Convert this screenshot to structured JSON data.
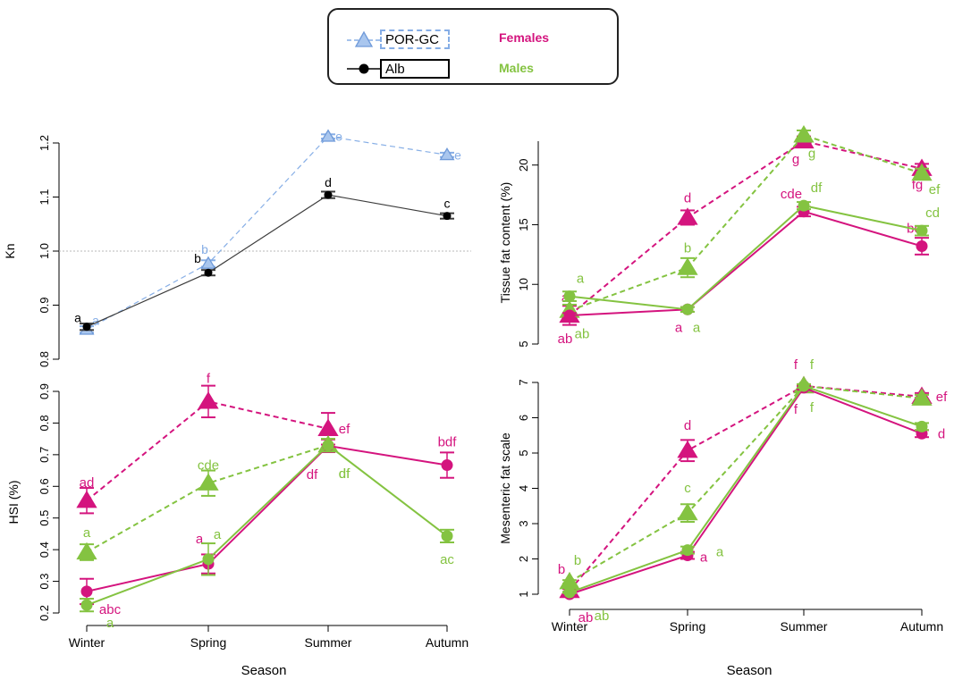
{
  "legend": {
    "groups": [
      {
        "label": "POR-GC",
        "color": "#86aee6",
        "line": "dashed",
        "marker": "triangle"
      },
      {
        "label": "Alb",
        "color": "#000000",
        "line": "solid",
        "marker": "circle"
      }
    ],
    "sexes": [
      {
        "label": "Females",
        "color": "#d4147e"
      },
      {
        "label": "Males",
        "color": "#84c341"
      }
    ]
  },
  "xlabel_left": "Season",
  "xlabel_right": "Season",
  "chart_data": [
    {
      "id": "kn",
      "type": "line",
      "xlabel": "",
      "ylabel": "Kn",
      "categories": [
        "Winter",
        "Spring",
        "Summer",
        "Autumn"
      ],
      "ylim": [
        0.8,
        1.2
      ],
      "yticks": [
        "0.8",
        "0.9",
        "1.0",
        "1.1",
        "1.2"
      ],
      "reference_line": 1.0,
      "series": [
        {
          "name": "POR-GC",
          "color": "#86aee6",
          "dash": true,
          "marker": "triangle",
          "values": [
            0.855,
            0.977,
            1.212,
            1.178
          ],
          "err": [
            0.006,
            0.006,
            0.004,
            0.004
          ],
          "letters": [
            "a",
            "b",
            "e",
            "e"
          ]
        },
        {
          "name": "Alb",
          "color": "#3c3c3c",
          "dash": false,
          "marker": "circle",
          "values": [
            0.86,
            0.96,
            1.104,
            1.065
          ],
          "err": [
            0.006,
            0.005,
            0.006,
            0.005
          ],
          "letters": [
            "a",
            "b",
            "d",
            "c"
          ]
        }
      ]
    },
    {
      "id": "fat",
      "type": "line",
      "xlabel": "",
      "ylabel": "Tissue fat content (%)",
      "categories": [
        "Winter",
        "Spring",
        "Summer",
        "Autumn"
      ],
      "ylim": [
        5,
        22
      ],
      "yticks": [
        "5",
        "10",
        "15",
        "20"
      ],
      "series": [
        {
          "name": "POR-GC Females",
          "color": "#d4147e",
          "dash": true,
          "marker": "triangle",
          "values": [
            7.4,
            15.6,
            22.0,
            19.7
          ],
          "err": [
            0.8,
            0.6,
            0.4,
            0.4
          ],
          "letters": [
            "ab",
            "d",
            "g",
            "fg"
          ]
        },
        {
          "name": "POR-GC Males",
          "color": "#84c341",
          "dash": true,
          "marker": "triangle",
          "values": [
            7.8,
            11.4,
            22.5,
            19.3
          ],
          "err": [
            0.5,
            0.8,
            0.4,
            0.4
          ],
          "letters": [
            "ab",
            "b",
            "g",
            "ef"
          ]
        },
        {
          "name": "Alb Females",
          "color": "#d4147e",
          "dash": false,
          "marker": "circle",
          "values": [
            7.4,
            7.9,
            16.1,
            13.2
          ],
          "err": [
            0.2,
            0.2,
            0.4,
            0.7
          ],
          "letters": [
            "a",
            "a",
            "cde",
            "bc"
          ]
        },
        {
          "name": "Alb Males",
          "color": "#84c341",
          "dash": false,
          "marker": "circle",
          "values": [
            9.0,
            7.9,
            16.6,
            14.5
          ],
          "err": [
            0.4,
            0.2,
            0.3,
            0.4
          ],
          "letters": [
            "a",
            "a",
            "df",
            "cd"
          ]
        }
      ]
    },
    {
      "id": "hsi",
      "type": "line",
      "xlabel": "Season",
      "ylabel": "HSI (%)",
      "categories": [
        "Winter",
        "Spring",
        "Summer",
        "Autumn"
      ],
      "ylim": [
        0.2,
        0.9
      ],
      "yticks": [
        "0.2",
        "0.3",
        "0.4",
        "0.5",
        "0.6",
        "0.7",
        "0.8",
        "0.9"
      ],
      "series": [
        {
          "name": "POR-GC Females",
          "color": "#d4147e",
          "dash": true,
          "marker": "triangle",
          "values": [
            0.555,
            0.868,
            0.782,
            null
          ],
          "err": [
            0.04,
            0.05,
            0.05,
            0
          ],
          "letters": [
            "ad",
            "f",
            "ef",
            ""
          ]
        },
        {
          "name": "POR-GC Males",
          "color": "#84c341",
          "dash": true,
          "marker": "triangle",
          "values": [
            0.392,
            0.61,
            0.73,
            null
          ],
          "err": [
            0.025,
            0.04,
            0.02,
            0
          ],
          "letters": [
            "a",
            "cde",
            "df",
            ""
          ]
        },
        {
          "name": "Alb Females",
          "color": "#d4147e",
          "dash": false,
          "marker": "circle",
          "values": [
            0.268,
            0.355,
            0.728,
            0.667
          ],
          "err": [
            0.04,
            0.03,
            0.02,
            0.04
          ],
          "letters": [
            "abc",
            "a",
            "df",
            "bdf"
          ]
        },
        {
          "name": "Alb Males",
          "color": "#84c341",
          "dash": false,
          "marker": "circle",
          "values": [
            0.225,
            0.37,
            0.73,
            0.443
          ],
          "err": [
            0.02,
            0.05,
            0.02,
            0.02
          ],
          "letters": [
            "a",
            "a",
            "df",
            "ac"
          ]
        }
      ]
    },
    {
      "id": "mes",
      "type": "line",
      "xlabel": "Season",
      "ylabel": "Mesenteric fat scale",
      "categories": [
        "Winter",
        "Spring",
        "Summer",
        "Autumn"
      ],
      "ylim": [
        1,
        7
      ],
      "yticks": [
        "1",
        "2",
        "3",
        "4",
        "5",
        "6",
        "7"
      ],
      "series": [
        {
          "name": "POR-GC Females",
          "color": "#d4147e",
          "dash": true,
          "marker": "triangle",
          "values": [
            1.1,
            5.07,
            6.9,
            6.6
          ],
          "err": [
            0.05,
            0.3,
            0.05,
            0.1
          ],
          "letters": [
            "b",
            "d",
            "f",
            "ef"
          ]
        },
        {
          "name": "POR-GC Males",
          "color": "#84c341",
          "dash": true,
          "marker": "triangle",
          "values": [
            1.35,
            3.3,
            6.9,
            6.55
          ],
          "err": [
            0.05,
            0.25,
            0.05,
            0.1
          ],
          "letters": [
            "b",
            "c",
            "f",
            "ef"
          ]
        },
        {
          "name": "Alb Females",
          "color": "#d4147e",
          "dash": false,
          "marker": "circle",
          "values": [
            1.0,
            2.1,
            6.85,
            5.55
          ],
          "err": [
            0.02,
            0.1,
            0.05,
            0.1
          ],
          "letters": [
            "ab",
            "a",
            "f",
            "d"
          ]
        },
        {
          "name": "Alb Males",
          "color": "#84c341",
          "dash": false,
          "marker": "circle",
          "values": [
            1.05,
            2.25,
            6.9,
            5.75
          ],
          "err": [
            0.02,
            0.1,
            0.05,
            0.1
          ],
          "letters": [
            "ab",
            "a",
            "f",
            "de"
          ]
        }
      ]
    }
  ]
}
